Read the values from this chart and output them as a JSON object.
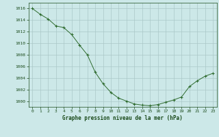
{
  "x": [
    0,
    1,
    2,
    3,
    4,
    5,
    6,
    7,
    8,
    9,
    10,
    11,
    12,
    13,
    14,
    15,
    16,
    17,
    18,
    19,
    20,
    21,
    22,
    23
  ],
  "y": [
    1016,
    1015,
    1014.2,
    1013,
    1012.7,
    1011.5,
    1009.7,
    1008,
    1005,
    1003,
    1001.5,
    1000.5,
    1000,
    999.5,
    999.3,
    999.2,
    999.4,
    999.8,
    1000.2,
    1000.7,
    1002.5,
    1003.5,
    1004.3,
    1004.8
  ],
  "line_color": "#2d6a2d",
  "marker": "+",
  "marker_color": "#2d6a2d",
  "bg_color": "#cce8e8",
  "grid_color": "#aac8c8",
  "xlabel": "Graphe pression niveau de la mer (hPa)",
  "xlabel_color": "#1a4a1a",
  "tick_color": "#1a4a1a",
  "xlim": [
    -0.5,
    23.5
  ],
  "ylim": [
    999,
    1017
  ],
  "yticks": [
    1000,
    1002,
    1004,
    1006,
    1008,
    1010,
    1012,
    1014,
    1016
  ],
  "xticks": [
    0,
    1,
    2,
    3,
    4,
    5,
    6,
    7,
    8,
    9,
    10,
    11,
    12,
    13,
    14,
    15,
    16,
    17,
    18,
    19,
    20,
    21,
    22,
    23
  ]
}
